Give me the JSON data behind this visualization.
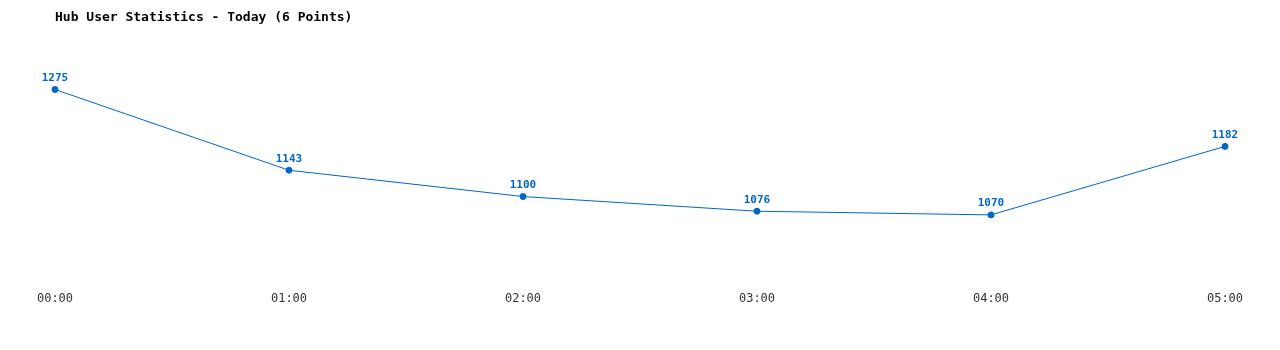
{
  "chart_data": {
    "type": "line",
    "title": "Hub User Statistics - Today (6 Points)",
    "categories": [
      "00:00",
      "01:00",
      "02:00",
      "03:00",
      "04:00",
      "05:00"
    ],
    "series": [
      {
        "color": "#0066cc",
        "values": [
          1275,
          1143,
          1100,
          1076,
          1070,
          1182
        ]
      }
    ],
    "data_labels": true,
    "grid": false,
    "legend": false,
    "marker": "circle",
    "line_style": "solid",
    "tick_labels": "x"
  }
}
